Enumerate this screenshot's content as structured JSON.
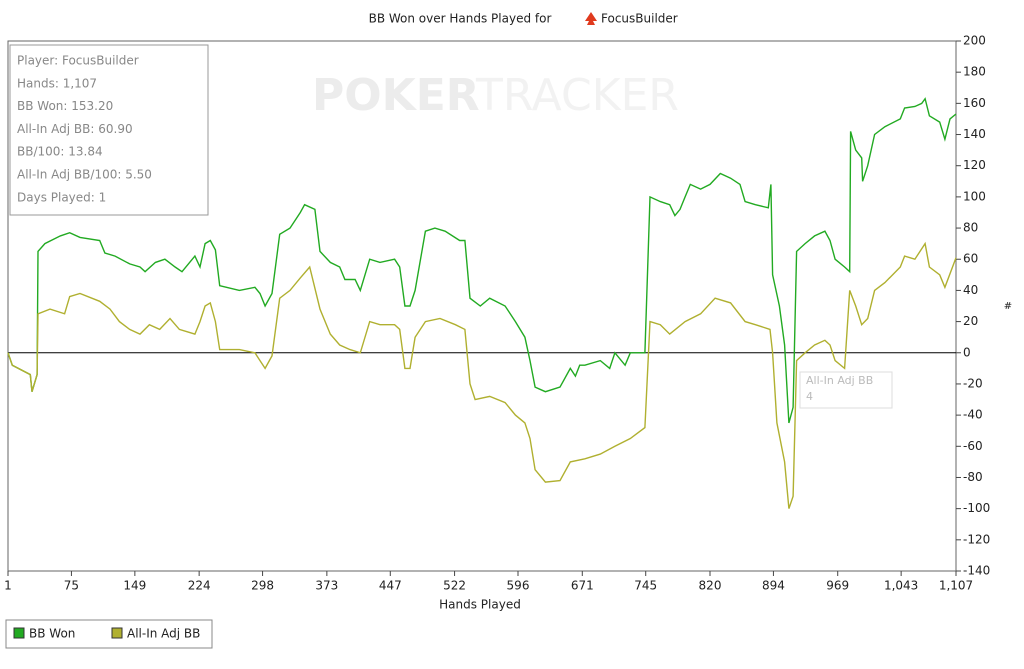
{
  "chart_data": {
    "type": "line",
    "title": "BB Won over Hands Played for",
    "title_player": "FocusBuilder",
    "watermark_left": "POKER",
    "watermark_right": "TRACKER",
    "x_label": "Hands Played",
    "y_label": "#",
    "stats": [
      "Player: FocusBuilder",
      "Hands: 1,107",
      "BB Won: 153.20",
      "All-In Adj BB: 60.90",
      "BB/100: 13.84",
      "All-In Adj BB/100: 5.50",
      "Days Played: 1"
    ],
    "tooltip": [
      "All-In Adj BB",
      "4"
    ],
    "xlim": [
      1,
      1107
    ],
    "ylim": [
      -140,
      200
    ],
    "xticks": [
      1,
      75,
      149,
      224,
      298,
      373,
      447,
      522,
      596,
      671,
      745,
      820,
      894,
      969,
      {
        "value": 1043,
        "label": "1,043"
      },
      {
        "value": 1107,
        "label": "1,107"
      }
    ],
    "yticks": [
      -140,
      -120,
      -100,
      -80,
      -60,
      -40,
      -20,
      0,
      20,
      40,
      60,
      80,
      100,
      120,
      140,
      160,
      180,
      200
    ],
    "series": [
      {
        "name": "BB Won",
        "color": "#22aa22",
        "x": [
          1,
          6,
          27,
          29,
          35,
          36,
          44,
          62,
          73,
          85,
          108,
          114,
          126,
          143,
          155,
          161,
          173,
          184,
          196,
          204,
          219,
          225,
          231,
          237,
          243,
          248,
          271,
          289,
          295,
          301,
          309,
          318,
          330,
          342,
          347,
          359,
          365,
          377,
          388,
          394,
          406,
          412,
          423,
          435,
          452,
          458,
          464,
          470,
          476,
          488,
          499,
          511,
          528,
          534,
          540,
          552,
          563,
          581,
          593,
          604,
          610,
          616,
          628,
          645,
          657,
          663,
          668,
          674,
          692,
          703,
          709,
          721,
          727,
          738,
          744,
          750,
          762,
          773,
          779,
          785,
          791,
          797,
          809,
          820,
          832,
          844,
          855,
          861,
          873,
          888,
          891,
          893,
          901,
          907,
          912,
          917,
          921,
          931,
          942,
          954,
          960,
          966,
          977,
          983,
          984,
          990,
          997,
          998,
          1004,
          1012,
          1024,
          1042,
          1047,
          1059,
          1067,
          1071,
          1076,
          1088,
          1094,
          1100,
          1107
        ],
        "values": [
          0,
          -8,
          -14,
          -25,
          -14,
          65,
          70,
          75,
          77,
          74,
          72,
          64,
          62,
          57,
          55,
          52,
          58,
          60,
          55,
          52,
          62,
          55,
          70,
          72,
          66,
          43,
          40,
          42,
          38,
          30,
          38,
          76,
          80,
          90,
          95,
          92,
          65,
          58,
          55,
          47,
          47,
          40,
          60,
          58,
          60,
          55,
          30,
          30,
          40,
          78,
          80,
          78,
          72,
          72,
          35,
          30,
          35,
          30,
          20,
          10,
          -5,
          -22,
          -25,
          -22,
          -10,
          -15,
          -8,
          -8,
          -5,
          -10,
          0,
          -8,
          0,
          0,
          0,
          100,
          97,
          95,
          88,
          92,
          100,
          108,
          105,
          108,
          115,
          112,
          108,
          97,
          95,
          93,
          108,
          50,
          30,
          5,
          -45,
          -35,
          65,
          70,
          75,
          78,
          72,
          60,
          55,
          52,
          142,
          130,
          125,
          110,
          120,
          140,
          145,
          150,
          157,
          158,
          160,
          163,
          152,
          148,
          137,
          150,
          153.2
        ]
      },
      {
        "name": "All-In Adj BB",
        "color": "#b0b030",
        "x": [
          1,
          6,
          27,
          29,
          35,
          36,
          50,
          67,
          73,
          85,
          108,
          120,
          131,
          143,
          155,
          166,
          178,
          190,
          201,
          219,
          225,
          231,
          237,
          243,
          248,
          271,
          289,
          295,
          301,
          309,
          318,
          330,
          342,
          353,
          365,
          377,
          388,
          400,
          412,
          423,
          435,
          452,
          458,
          464,
          470,
          476,
          488,
          505,
          523,
          534,
          540,
          546,
          563,
          581,
          593,
          604,
          610,
          616,
          628,
          645,
          657,
          674,
          692,
          709,
          727,
          744,
          750,
          762,
          773,
          791,
          809,
          826,
          844,
          861,
          873,
          890,
          893,
          898,
          907,
          912,
          917,
          921,
          931,
          942,
          954,
          960,
          966,
          977,
          983,
          990,
          997,
          1004,
          1012,
          1024,
          1042,
          1047,
          1059,
          1071,
          1076,
          1088,
          1094,
          1107
        ],
        "values": [
          0,
          -8,
          -14,
          -25,
          -14,
          25,
          28,
          25,
          36,
          38,
          33,
          28,
          20,
          15,
          12,
          18,
          15,
          22,
          15,
          12,
          20,
          30,
          32,
          20,
          2,
          2,
          0,
          -5,
          -10,
          -2,
          35,
          40,
          48,
          55,
          28,
          12,
          5,
          2,
          0,
          20,
          18,
          18,
          15,
          -10,
          -10,
          10,
          20,
          22,
          18,
          15,
          -20,
          -30,
          -28,
          -32,
          -40,
          -45,
          -55,
          -75,
          -83,
          -82,
          -70,
          -68,
          -65,
          -60,
          -55,
          -48,
          20,
          18,
          12,
          20,
          25,
          35,
          32,
          20,
          18,
          15,
          0,
          -45,
          -70,
          -100,
          -92,
          -5,
          0,
          5,
          8,
          5,
          -5,
          -10,
          40,
          30,
          18,
          22,
          40,
          45,
          55,
          62,
          60,
          70,
          55,
          50,
          42,
          60.9
        ]
      }
    ]
  }
}
